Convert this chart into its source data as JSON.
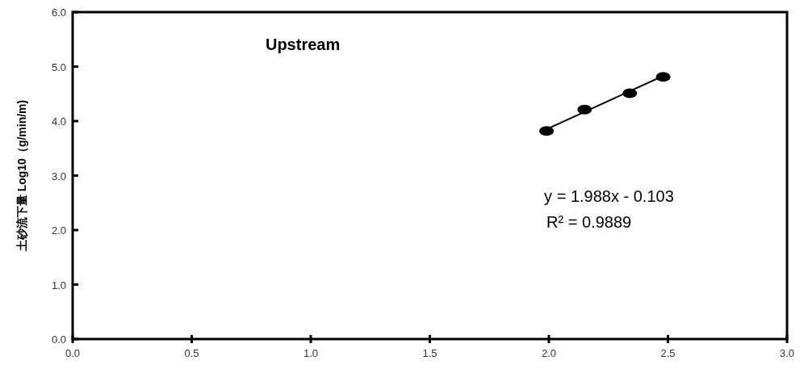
{
  "chart_data": {
    "type": "scatter",
    "title": "Upstream",
    "ylabel": "土砂流下量 Log10（g/min/m)",
    "xlim": [
      0,
      3
    ],
    "ylim": [
      0,
      6
    ],
    "xticks": [
      {
        "value": 0,
        "label": "0.0"
      },
      {
        "value": 0.5,
        "label": "0.5"
      },
      {
        "value": 1,
        "label": "1.0"
      },
      {
        "value": 1.5,
        "label": "1.5"
      },
      {
        "value": 2,
        "label": "2.0"
      },
      {
        "value": 2.5,
        "label": "2.5"
      },
      {
        "value": 3,
        "label": "3.0"
      }
    ],
    "yticks": [
      {
        "value": 0,
        "label": "0.0"
      },
      {
        "value": 1,
        "label": "1.0"
      },
      {
        "value": 2,
        "label": "2.0"
      },
      {
        "value": 3,
        "label": "3.0"
      },
      {
        "value": 4,
        "label": "4.0"
      },
      {
        "value": 5,
        "label": "5.0"
      },
      {
        "value": 6,
        "label": "6.0"
      }
    ],
    "grid": false,
    "marker": "circle",
    "series": [
      {
        "color": "#000000",
        "x": [
          1.99,
          2.15,
          2.34,
          2.48
        ],
        "values": [
          3.82,
          4.21,
          4.51,
          4.81
        ]
      },
      {
        "type": "line",
        "color": "#000000",
        "marker": "none",
        "x": [
          1.99,
          2.48
        ],
        "values": [
          3.85,
          4.83
        ]
      }
    ],
    "annotations": [
      "y = 1.988x - 0.103",
      "R² = 0.9889"
    ]
  }
}
